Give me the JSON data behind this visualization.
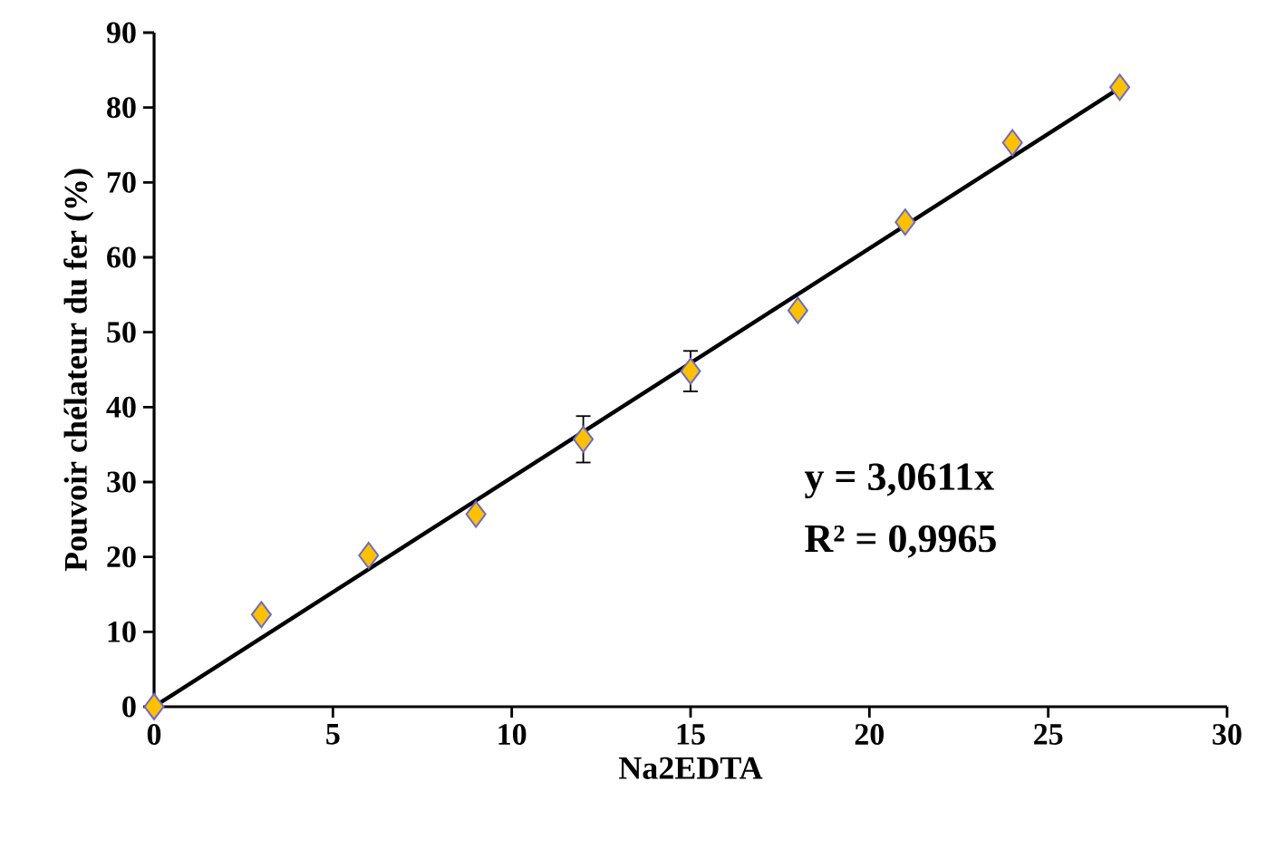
{
  "chart_data": {
    "type": "scatter",
    "xlabel": "Na2EDTA",
    "ylabel": "Pouvoir chélateur du fer (%)",
    "xlim": [
      0,
      30
    ],
    "ylim": [
      0,
      90
    ],
    "xticks": [
      0,
      5,
      10,
      15,
      20,
      25,
      30
    ],
    "yticks": [
      0,
      10,
      20,
      30,
      40,
      50,
      60,
      70,
      80,
      90
    ],
    "series": [
      {
        "marker": "diamond",
        "color": "#ffc000",
        "x": [
          0,
          3,
          6,
          9,
          12,
          15,
          18,
          21,
          24,
          27
        ],
        "values": [
          0,
          12.3,
          20.2,
          25.7,
          35.7,
          44.8,
          52.9,
          64.7,
          75.3,
          82.7
        ],
        "errors": [
          null,
          null,
          null,
          null,
          3.1,
          2.7,
          null,
          null,
          null,
          null
        ]
      },
      {
        "type": "line",
        "marker": "none",
        "color": "#000000",
        "x": [
          0,
          27
        ],
        "values": [
          0,
          82.6
        ]
      }
    ],
    "annotations": [
      "y = 3,0611x",
      "R² = 0,9965"
    ]
  }
}
